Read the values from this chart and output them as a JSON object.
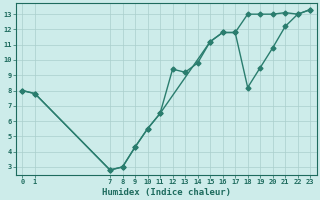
{
  "line1_x": [
    0,
    1,
    7,
    8,
    9,
    10,
    11,
    12,
    13,
    14,
    15,
    16,
    17,
    18,
    19,
    20,
    21,
    22,
    23
  ],
  "line1_y": [
    8.0,
    7.8,
    2.8,
    3.0,
    4.3,
    5.5,
    6.5,
    9.4,
    9.2,
    9.8,
    11.2,
    11.8,
    11.8,
    13.0,
    13.0,
    13.0,
    13.1,
    13.0,
    13.3
  ],
  "line2_x": [
    0,
    1,
    7,
    8,
    9,
    10,
    11,
    15,
    16,
    17,
    18,
    19,
    20,
    21,
    22,
    23
  ],
  "line2_y": [
    8.0,
    7.8,
    2.8,
    3.0,
    4.3,
    5.5,
    6.5,
    11.2,
    11.8,
    11.8,
    8.2,
    9.5,
    10.8,
    12.2,
    13.0,
    13.3
  ],
  "xlabel": "Humidex (Indice chaleur)",
  "xlim_min": -0.5,
  "xlim_max": 23.5,
  "ylim_min": 2.5,
  "ylim_max": 13.7,
  "yticks": [
    3,
    4,
    5,
    6,
    7,
    8,
    9,
    10,
    11,
    12,
    13
  ],
  "xtick_positions": [
    0,
    1,
    7,
    8,
    9,
    10,
    11,
    12,
    13,
    14,
    15,
    16,
    17,
    18,
    19,
    20,
    21,
    22,
    23
  ],
  "xtick_labels": [
    "0",
    "1",
    "7",
    "8",
    "9",
    "10",
    "11",
    "12",
    "13",
    "14",
    "15",
    "16",
    "17",
    "18",
    "19",
    "20",
    "21",
    "22",
    "23"
  ],
  "line_color": "#2a7d6e",
  "bg_color": "#cdecea",
  "grid_color": "#aacfcc",
  "tick_label_color": "#1e6b5e",
  "axis_color": "#1e6b5e",
  "font_size_ticks": 5.0,
  "font_size_xlabel": 6.5,
  "marker": "D",
  "marker_size": 2.5,
  "linewidth": 1.0
}
